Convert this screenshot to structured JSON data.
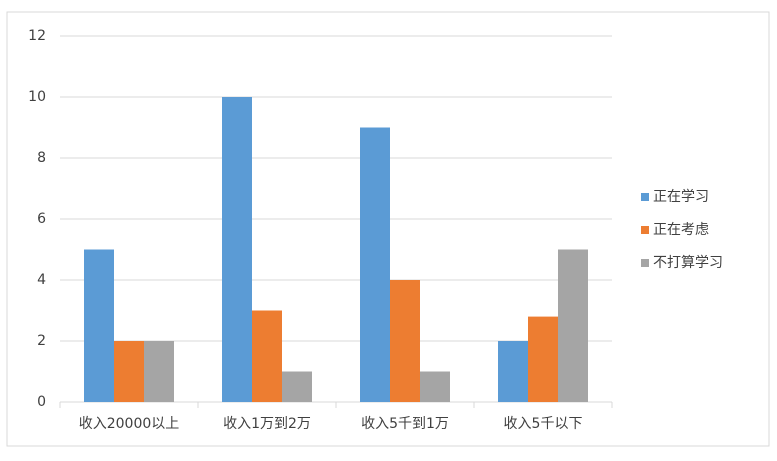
{
  "chart_data": {
    "type": "bar",
    "categories": [
      "收入20000以上",
      "收入1万到2万",
      "收入5千到1万",
      "收入5千以下"
    ],
    "series": [
      {
        "name": "正在学习",
        "color": "#5b9bd5",
        "values": [
          5,
          10,
          9,
          2
        ]
      },
      {
        "name": "正在考虑",
        "color": "#ed7d31",
        "values": [
          2,
          3,
          4,
          2.8
        ]
      },
      {
        "name": "不打算学习",
        "color": "#a5a5a5",
        "values": [
          2,
          1,
          1,
          5
        ]
      }
    ],
    "ylim": [
      0,
      12
    ],
    "yticks": [
      0,
      2,
      4,
      6,
      8,
      10,
      12
    ],
    "grid": true,
    "legend": "right"
  }
}
